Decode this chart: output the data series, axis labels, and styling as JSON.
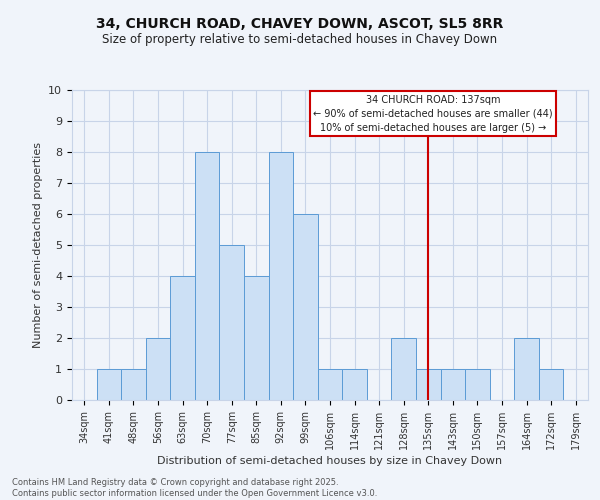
{
  "title_line1": "34, CHURCH ROAD, CHAVEY DOWN, ASCOT, SL5 8RR",
  "title_line2": "Size of property relative to semi-detached houses in Chavey Down",
  "xlabel": "Distribution of semi-detached houses by size in Chavey Down",
  "ylabel": "Number of semi-detached properties",
  "categories": [
    "34sqm",
    "41sqm",
    "48sqm",
    "56sqm",
    "63sqm",
    "70sqm",
    "77sqm",
    "85sqm",
    "92sqm",
    "99sqm",
    "106sqm",
    "114sqm",
    "121sqm",
    "128sqm",
    "135sqm",
    "143sqm",
    "150sqm",
    "157sqm",
    "164sqm",
    "172sqm",
    "179sqm"
  ],
  "values": [
    0,
    1,
    1,
    2,
    4,
    8,
    5,
    4,
    8,
    6,
    1,
    1,
    0,
    2,
    1,
    1,
    1,
    0,
    2,
    1,
    0
  ],
  "bar_color": "#cce0f5",
  "bar_edge_color": "#5b9bd5",
  "annotation_line1": "34 CHURCH ROAD: 137sqm",
  "annotation_line2": "← 90% of semi-detached houses are smaller (44)",
  "annotation_line3": "10% of semi-detached houses are larger (5) →",
  "ylim": [
    0,
    10
  ],
  "yticks": [
    0,
    1,
    2,
    3,
    4,
    5,
    6,
    7,
    8,
    9,
    10
  ],
  "footer_line1": "Contains HM Land Registry data © Crown copyright and database right 2025.",
  "footer_line2": "Contains public sector information licensed under the Open Government Licence v3.0.",
  "background_color": "#f0f4fa",
  "grid_color": "#c8d4e8",
  "annotation_box_color": "#ffffff",
  "annotation_box_edge": "#cc0000",
  "red_line_color": "#cc0000",
  "red_line_index": 14
}
